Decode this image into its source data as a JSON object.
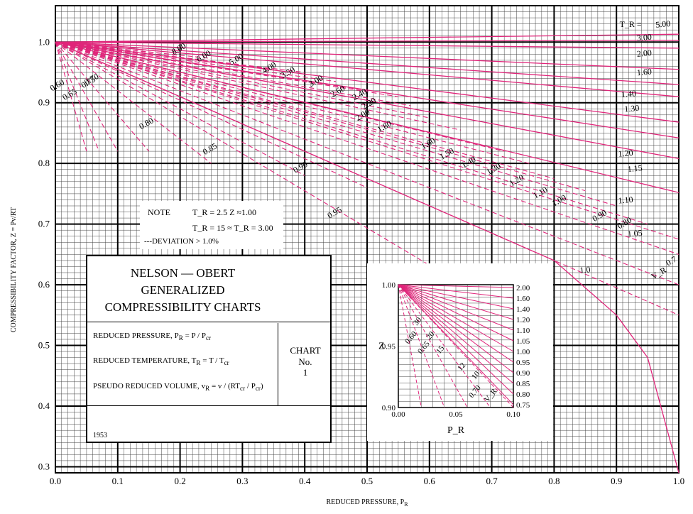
{
  "chart_data": {
    "type": "line",
    "xlabel": "REDUCED PRESSURE, P_R",
    "ylabel": "COMPRESSIBILITY FACTOR, Z = Pv/RT",
    "xlim": [
      0.0,
      1.0
    ],
    "ylim": [
      0.29,
      1.06
    ],
    "x_ticks": [
      "0.0",
      "0.1",
      "0.2",
      "0.3",
      "0.4",
      "0.5",
      "0.6",
      "0.7",
      "0.8",
      "0.9",
      "1.0"
    ],
    "y_ticks": [
      "0.3",
      "0.4",
      "0.5",
      "0.6",
      "0.7",
      "0.8",
      "0.9",
      "1.0"
    ],
    "grid": true,
    "tr_series": [
      {
        "name": "5.00",
        "x": [
          0,
          1
        ],
        "y": [
          1.0,
          1.013
        ]
      },
      {
        "name": "3.00",
        "x": [
          0,
          1
        ],
        "y": [
          1.0,
          1.003
        ]
      },
      {
        "name": "2.00",
        "x": [
          0,
          1
        ],
        "y": [
          1.0,
          0.99
        ]
      },
      {
        "name": "1.60",
        "x": [
          0,
          1
        ],
        "y": [
          1.0,
          0.955
        ]
      },
      {
        "name": "1.40",
        "x": [
          0,
          1
        ],
        "y": [
          1.0,
          0.93
        ]
      },
      {
        "name": "1.30",
        "x": [
          0,
          1
        ],
        "y": [
          1.0,
          0.91
        ]
      },
      {
        "name": "1.20",
        "x": [
          0,
          1
        ],
        "y": [
          1.0,
          0.868
        ]
      },
      {
        "name": "1.15",
        "x": [
          0,
          1
        ],
        "y": [
          1.0,
          0.842
        ]
      },
      {
        "name": "1.10",
        "x": [
          0,
          1
        ],
        "y": [
          1.0,
          0.808
        ]
      },
      {
        "name": "1.05",
        "x": [
          0,
          1
        ],
        "y": [
          1.0,
          0.752
        ]
      },
      {
        "name": "1.0",
        "x": [
          0,
          0.5,
          0.8,
          0.9,
          0.95,
          1.0
        ],
        "y": [
          1.0,
          0.775,
          0.64,
          0.55,
          0.48,
          0.29
        ]
      }
    ],
    "vr_series": [
      {
        "name": "8.00",
        "x": [
          0,
          0.17
        ],
        "y": [
          1.0,
          0.985
        ]
      },
      {
        "name": "6.00",
        "x": [
          0,
          0.2
        ],
        "y": [
          1.0,
          0.978
        ]
      },
      {
        "name": "5.00",
        "x": [
          0,
          0.25
        ],
        "y": [
          1.0,
          0.973
        ]
      },
      {
        "name": "4.00",
        "x": [
          0,
          0.35
        ],
        "y": [
          1.0,
          0.955
        ]
      },
      {
        "name": "3.50",
        "x": [
          0,
          0.4
        ],
        "y": [
          1.0,
          0.95
        ]
      },
      {
        "name": "3.00",
        "x": [
          0,
          0.45
        ],
        "y": [
          1.0,
          0.935
        ]
      },
      {
        "name": "2.60",
        "x": [
          0,
          0.5
        ],
        "y": [
          1.0,
          0.92
        ]
      },
      {
        "name": "2.40",
        "x": [
          0,
          0.55
        ],
        "y": [
          1.0,
          0.91
        ]
      },
      {
        "name": "2.20",
        "x": [
          0,
          0.57
        ],
        "y": [
          1.0,
          0.895
        ]
      },
      {
        "name": "2.00",
        "x": [
          0,
          0.6
        ],
        "y": [
          1.0,
          0.875
        ]
      },
      {
        "name": "1.80",
        "x": [
          0,
          0.65
        ],
        "y": [
          1.0,
          0.855
        ]
      },
      {
        "name": "1.60",
        "x": [
          0,
          0.72
        ],
        "y": [
          1.0,
          0.82
        ]
      },
      {
        "name": "1.50",
        "x": [
          0,
          0.76
        ],
        "y": [
          1.0,
          0.8
        ]
      },
      {
        "name": "1.40",
        "x": [
          0,
          0.8
        ],
        "y": [
          1.0,
          0.775
        ]
      },
      {
        "name": "1.30",
        "x": [
          0,
          0.85
        ],
        "y": [
          1.0,
          0.755
        ]
      },
      {
        "name": "1.20",
        "x": [
          0,
          0.9
        ],
        "y": [
          1.0,
          0.73
        ]
      },
      {
        "name": "1.10",
        "x": [
          0,
          0.95
        ],
        "y": [
          1.0,
          0.7
        ]
      },
      {
        "name": "1.00",
        "x": [
          0,
          1.0
        ],
        "y": [
          1.0,
          0.675
        ]
      },
      {
        "name": "0.90",
        "x": [
          0,
          1.0
        ],
        "y": [
          1.0,
          0.65
        ]
      },
      {
        "name": "0.80",
        "x": [
          0,
          1.0
        ],
        "y": [
          1.0,
          0.6
        ]
      },
      {
        "name": "0.7",
        "x": [
          0,
          1.0
        ],
        "y": [
          1.0,
          0.55
        ]
      },
      {
        "name": "0.95",
        "x": [
          0,
          0.62
        ],
        "y": [
          1.0,
          0.62
        ]
      },
      {
        "name": "0.90",
        "x": [
          0,
          0.5
        ],
        "y": [
          1.0,
          0.76
        ]
      },
      {
        "name": "0.85",
        "x": [
          0,
          0.4
        ],
        "y": [
          1.0,
          0.78
        ]
      },
      {
        "name": "0.80",
        "x": [
          0,
          0.25
        ],
        "y": [
          1.0,
          0.8
        ]
      },
      {
        "name": "0.70",
        "x": [
          0,
          0.15
        ],
        "y": [
          1.0,
          0.82
        ]
      },
      {
        "name": "0.75",
        "x": [
          0,
          0.1
        ],
        "y": [
          1.0,
          0.82
        ]
      },
      {
        "name": "0.65",
        "x": [
          0,
          0.07
        ],
        "y": [
          1.0,
          0.82
        ]
      },
      {
        "name": "0.60",
        "x": [
          0,
          0.05
        ],
        "y": [
          1.0,
          0.82
        ]
      }
    ],
    "tr_labels": [
      {
        "text": "5.00",
        "x": 0.975,
        "y": 1.025
      },
      {
        "text": "3.00",
        "x": 0.945,
        "y": 1.003
      },
      {
        "text": "2.00",
        "x": 0.945,
        "y": 0.977
      },
      {
        "text": "1.60",
        "x": 0.945,
        "y": 0.946
      },
      {
        "text": "1.40",
        "x": 0.92,
        "y": 0.91
      },
      {
        "text": "1.30",
        "x": 0.925,
        "y": 0.886
      },
      {
        "text": "1.20",
        "x": 0.915,
        "y": 0.812
      },
      {
        "text": "1.15",
        "x": 0.93,
        "y": 0.787
      },
      {
        "text": "1.10",
        "x": 0.915,
        "y": 0.735
      },
      {
        "text": "1.05",
        "x": 0.93,
        "y": 0.68
      },
      {
        "text": "1.0",
        "x": 0.85,
        "y": 0.62
      }
    ],
    "vr_labels": [
      {
        "text": "8.00",
        "x": 0.2,
        "y": 0.985
      },
      {
        "text": "6.00",
        "x": 0.24,
        "y": 0.973
      },
      {
        "text": "5.00",
        "x": 0.292,
        "y": 0.968
      },
      {
        "text": "4.00",
        "x": 0.345,
        "y": 0.954
      },
      {
        "text": "3.50",
        "x": 0.375,
        "y": 0.946
      },
      {
        "text": "3.00",
        "x": 0.42,
        "y": 0.932
      },
      {
        "text": "2.60",
        "x": 0.455,
        "y": 0.915
      },
      {
        "text": "2.40",
        "x": 0.49,
        "y": 0.91
      },
      {
        "text": "2.20",
        "x": 0.505,
        "y": 0.895
      },
      {
        "text": "2.00",
        "x": 0.495,
        "y": 0.876
      },
      {
        "text": "1.80",
        "x": 0.53,
        "y": 0.857
      },
      {
        "text": "1.60",
        "x": 0.6,
        "y": 0.829
      },
      {
        "text": "1.50",
        "x": 0.63,
        "y": 0.812
      },
      {
        "text": "1.40",
        "x": 0.665,
        "y": 0.798
      },
      {
        "text": "1.30",
        "x": 0.705,
        "y": 0.787
      },
      {
        "text": "1.20",
        "x": 0.742,
        "y": 0.768
      },
      {
        "text": "1.10",
        "x": 0.78,
        "y": 0.748
      },
      {
        "text": "1.00",
        "x": 0.81,
        "y": 0.735
      },
      {
        "text": "0.90",
        "x": 0.875,
        "y": 0.71
      },
      {
        "text": "0.80",
        "x": 0.915,
        "y": 0.698
      },
      {
        "text": "0.7",
        "x": 0.99,
        "y": 0.635
      },
      {
        "text": "V_R",
        "x": 0.97,
        "y": 0.615
      },
      {
        "text": "0.95",
        "x": 0.45,
        "y": 0.715
      },
      {
        "text": "0.90",
        "x": 0.395,
        "y": 0.79
      },
      {
        "text": "0.85",
        "x": 0.25,
        "y": 0.82
      },
      {
        "text": "0.80",
        "x": 0.148,
        "y": 0.862
      },
      {
        "text": "0.70",
        "x": 0.06,
        "y": 0.935
      },
      {
        "text": "0.75",
        "x": 0.055,
        "y": 0.93
      },
      {
        "text": "0.65",
        "x": 0.025,
        "y": 0.91
      },
      {
        "text": "0.60",
        "x": 0.005,
        "y": 0.925
      }
    ],
    "tr_symbol": "T_R ="
  },
  "note": {
    "label": "NOTE",
    "line1": "T_R = 2.5   Z ≈1.00",
    "line2": "T_R = 15 ≈ T_R = 3.00",
    "line3": "---DEVIATION > 1.0%"
  },
  "title_box": {
    "line1": "NELSON — OBERT",
    "line2": "GENERALIZED",
    "line3": "COMPRESSIBILITY CHARTS",
    "def1": "REDUCED PRESSURE,",
    "def2": "REDUCED TEMPERATURE,",
    "def3": "PSEUDO REDUCED VOLUME,",
    "chart_label": "CHART",
    "chart_no": "No.",
    "chart_num": "1",
    "year": "1953"
  },
  "inset": {
    "xlabel": "P_R",
    "ylabel": "Z",
    "x_ticks": [
      "0.00",
      "0.05",
      "0.10"
    ],
    "y_ticks_left": [
      "1.00",
      "0.95",
      "0.90"
    ],
    "y_ticks_right": [
      "2.00",
      "1.60",
      "1.40",
      "1.20",
      "1.10",
      "1.05",
      "1.00",
      "0.95",
      "0.90",
      "0.85",
      "0.80",
      "0.75"
    ],
    "vr_labels": [
      "30",
      "20",
      "15",
      "12",
      "10",
      "0.60",
      "0.65",
      "0.70",
      "V_R"
    ]
  }
}
